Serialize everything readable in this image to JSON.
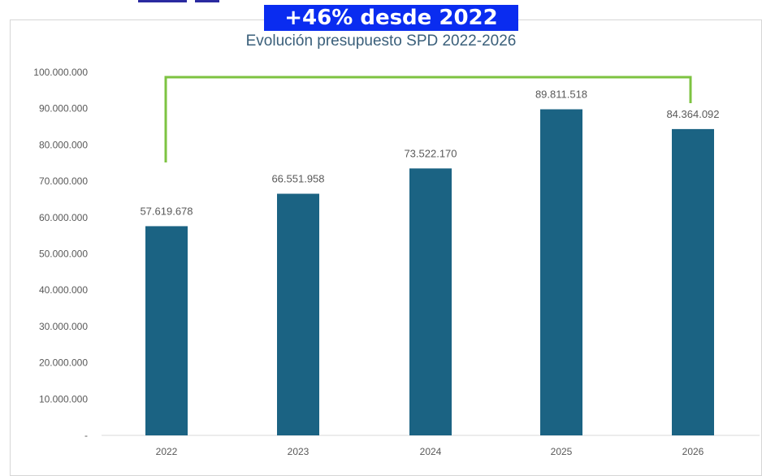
{
  "banner": {
    "text": "+46% desde 2022",
    "color": "#0a2cf0"
  },
  "chart_data": {
    "type": "bar",
    "title": "Evolución presupuesto SPD 2022-2026",
    "xlabel": "",
    "ylabel": "",
    "categories": [
      "2022",
      "2023",
      "2024",
      "2025",
      "2026"
    ],
    "values": [
      57619678,
      66551958,
      73522170,
      89811518,
      84364092
    ],
    "data_labels": [
      "57.619.678",
      "66.551.958",
      "73.522.170",
      "89.811.518",
      "84.364.092"
    ],
    "ylim": [
      0,
      100000000
    ],
    "y_ticks": [
      {
        "value": 0,
        "label": "-"
      },
      {
        "value": 10000000,
        "label": "10.000.000"
      },
      {
        "value": 20000000,
        "label": "20.000.000"
      },
      {
        "value": 30000000,
        "label": "30.000.000"
      },
      {
        "value": 40000000,
        "label": "40.000.000"
      },
      {
        "value": 50000000,
        "label": "50.000.000"
      },
      {
        "value": 60000000,
        "label": "60.000.000"
      },
      {
        "value": 70000000,
        "label": "70.000.000"
      },
      {
        "value": 80000000,
        "label": "80.000.000"
      },
      {
        "value": 90000000,
        "label": "90.000.000"
      },
      {
        "value": 100000000,
        "label": "100.000.000"
      }
    ],
    "grid": false,
    "bar_color": "#1b6383",
    "bracket": {
      "from": "2022",
      "to": "2026",
      "color": "#7dc341"
    }
  }
}
